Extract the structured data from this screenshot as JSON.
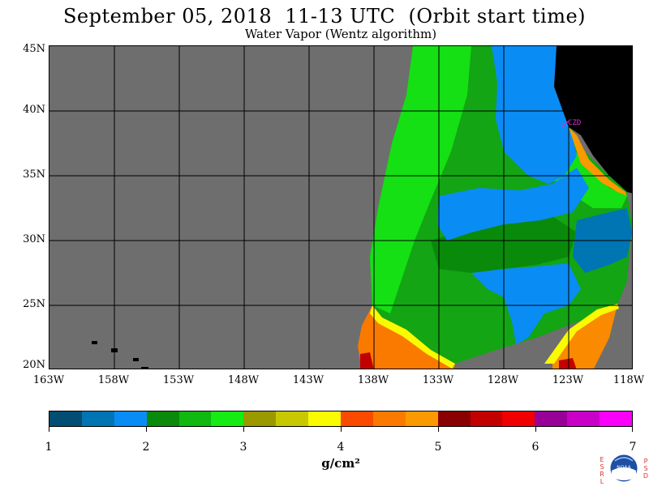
{
  "title": "September 05, 2018  11-13 UTC  (Orbit start time)",
  "subtitle": "Water Vapor (Wentz algorithm)",
  "station_label": "CZD",
  "lat_labels": [
    "45N",
    "40N",
    "35N",
    "30N",
    "25N",
    "20N"
  ],
  "lon_labels": [
    "163W",
    "158W",
    "153W",
    "148W",
    "143W",
    "138W",
    "133W",
    "128W",
    "123W",
    "118W"
  ],
  "colorbar": {
    "labels": [
      "1",
      "2",
      "3",
      "4",
      "5",
      "6",
      "7"
    ],
    "units": "g/cm²",
    "colors": [
      "#004e73",
      "#0075b4",
      "#0a8cf5",
      "#0a8a0a",
      "#10b810",
      "#14ec14",
      "#9a9a00",
      "#c8c800",
      "#fafa00",
      "#fa4a00",
      "#fa7a00",
      "#fa9a00",
      "#8a0000",
      "#c30000",
      "#f00000",
      "#980098",
      "#c800c8",
      "#fa00fa"
    ]
  },
  "logo": {
    "left_letters": "ESRL",
    "right_letters": "PSD",
    "center_text": "NOAA"
  },
  "chart_data": {
    "type": "heatmap",
    "title": "September 05, 2018  11-13 UTC  (Orbit start time)",
    "subtitle": "Water Vapor (Wentz algorithm)",
    "x_range": [
      -163,
      -118
    ],
    "y_range": [
      20,
      45
    ],
    "units": "g/cm²",
    "value_range": [
      1,
      7
    ],
    "land_color": "#000000",
    "no_data_color": "#6e6e6e",
    "grid": true
  }
}
